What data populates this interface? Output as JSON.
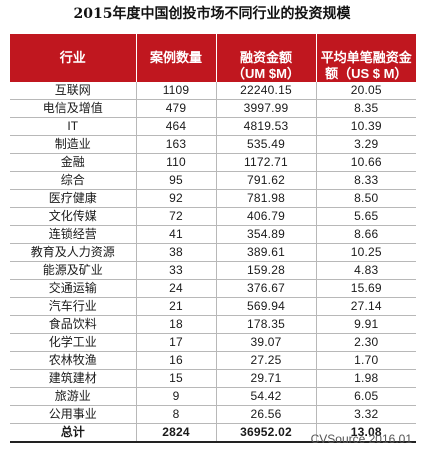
{
  "chart_data": {
    "type": "table",
    "title": "2015年度中国创投市场不同行业的投资规模",
    "columns": [
      "行业",
      "案例数量",
      "融资金额（UM $M）",
      "平均单笔融资金额（US $ M）"
    ],
    "rows": [
      [
        "互联网",
        "1109",
        "22240.15",
        "20.05"
      ],
      [
        "电信及增值",
        "479",
        "3997.99",
        "8.35"
      ],
      [
        "IT",
        "464",
        "4819.53",
        "10.39"
      ],
      [
        "制造业",
        "163",
        "535.49",
        "3.29"
      ],
      [
        "金融",
        "110",
        "1172.71",
        "10.66"
      ],
      [
        "综合",
        "95",
        "791.62",
        "8.33"
      ],
      [
        "医疗健康",
        "92",
        "781.98",
        "8.50"
      ],
      [
        "文化传媒",
        "72",
        "406.79",
        "5.65"
      ],
      [
        "连锁经营",
        "41",
        "354.89",
        "8.66"
      ],
      [
        "教育及人力资源",
        "38",
        "389.61",
        "10.25"
      ],
      [
        "能源及矿业",
        "33",
        "159.28",
        "4.83"
      ],
      [
        "交通运输",
        "24",
        "376.67",
        "15.69"
      ],
      [
        "汽车行业",
        "21",
        "569.94",
        "27.14"
      ],
      [
        "食品饮料",
        "18",
        "178.35",
        "9.91"
      ],
      [
        "化学工业",
        "17",
        "39.07",
        "2.30"
      ],
      [
        "农林牧渔",
        "16",
        "27.25",
        "1.70"
      ],
      [
        "建筑建材",
        "15",
        "29.71",
        "1.98"
      ],
      [
        "旅游业",
        "9",
        "54.42",
        "6.05"
      ],
      [
        "公用事业",
        "8",
        "26.56",
        "3.32"
      ]
    ],
    "total": [
      "总计",
      "2824",
      "36952.02",
      "13.08"
    ]
  },
  "table": {
    "headers": [
      "行业",
      "案例数量",
      "融资金额\n（UM $M）",
      "平均单笔融资金\n额（US $ M）"
    ]
  },
  "footer": {
    "source": "CVSource 2016.01"
  },
  "colors": {
    "header_bg": "#c0171f",
    "header_text": "#ffffff",
    "rule": "#b8b8b8"
  }
}
